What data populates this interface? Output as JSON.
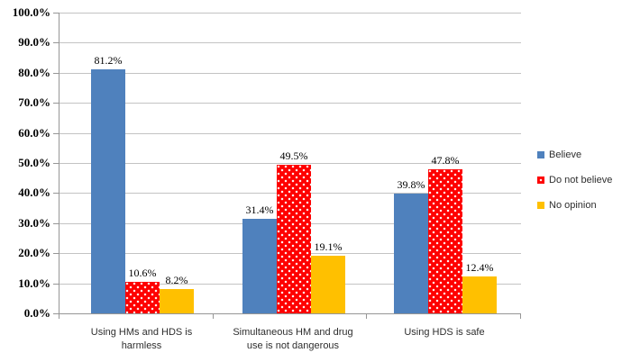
{
  "chart_data": {
    "type": "bar",
    "title": "",
    "xlabel": "",
    "ylabel": "",
    "grid": true,
    "plot_background": "#ffffff",
    "axis_color": "#969696",
    "gridline_color": "#c3c3c3",
    "categories": [
      "Using HMs and HDS is harmless",
      "Simultaneous HM and drug use is not dangerous",
      "Using HDS is safe"
    ],
    "category_label_lines": [
      [
        "Using HMs and HDS is",
        "harmless"
      ],
      [
        "Simultaneous HM and drug",
        "use is not dangerous"
      ],
      [
        "Using HDS is safe"
      ]
    ],
    "series": [
      {
        "name": "Believe",
        "color": "#4f81bd",
        "pattern": "solid",
        "values": [
          81.2,
          31.4,
          39.8
        ],
        "labels": [
          "81.2%",
          "31.4%",
          "39.8%"
        ]
      },
      {
        "name": "Do not believe",
        "color": "#fe0000",
        "pattern": "white-dots",
        "values": [
          10.6,
          49.5,
          47.8
        ],
        "labels": [
          "10.6%",
          "49.5%",
          "47.8%"
        ]
      },
      {
        "name": "No opinion",
        "color": "#ffc000",
        "pattern": "solid",
        "values": [
          8.2,
          19.1,
          12.4
        ],
        "labels": [
          "8.2%",
          "19.1%",
          "12.4%"
        ]
      }
    ],
    "y_axis": {
      "min": 0,
      "max": 100,
      "step": 10,
      "tick_labels": [
        "0.0%",
        "10.0%",
        "20.0%",
        "30.0%",
        "40.0%",
        "50.0%",
        "60.0%",
        "70.0%",
        "80.0%",
        "90.0%",
        "100.0%"
      ]
    },
    "legend": {
      "position": "right",
      "entries": [
        "Believe",
        "Do not believe",
        "No opinion"
      ]
    }
  }
}
